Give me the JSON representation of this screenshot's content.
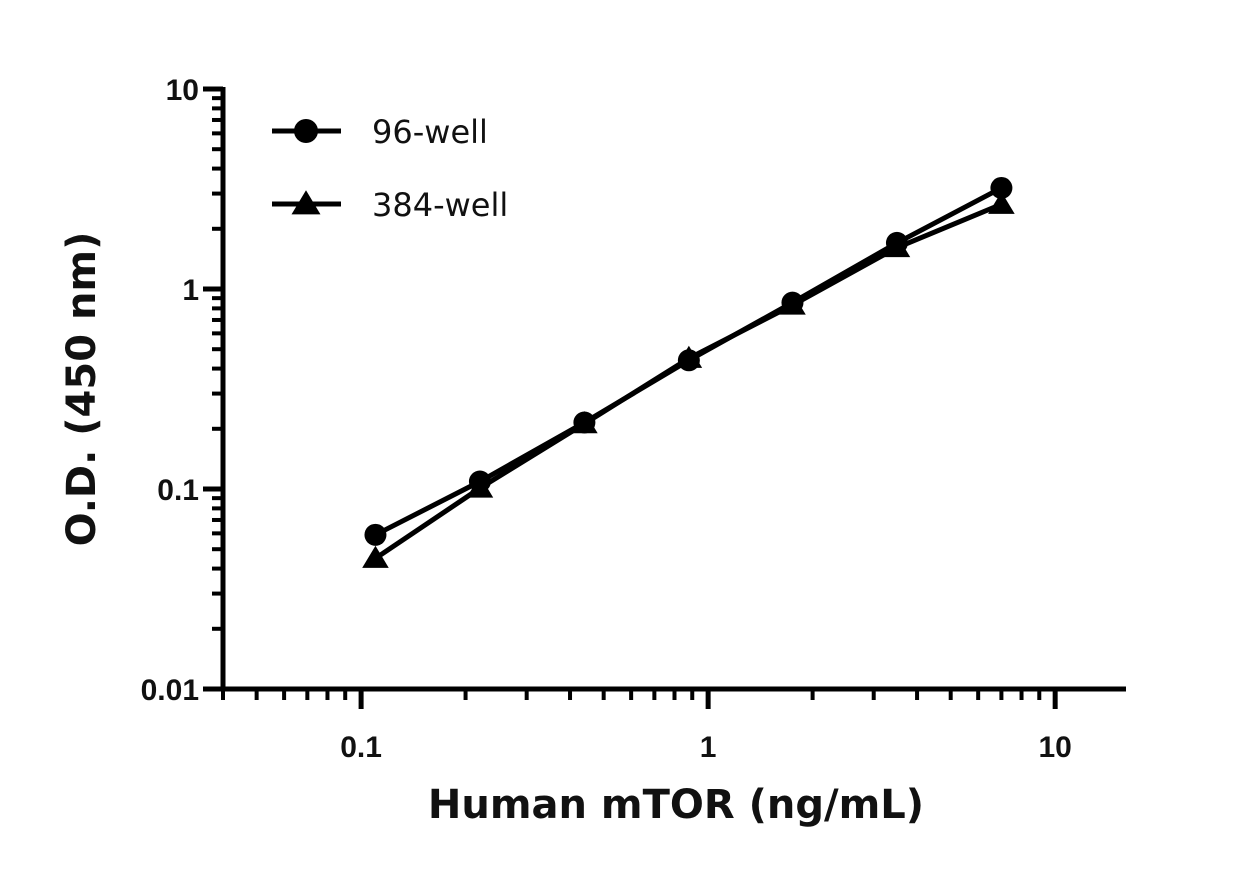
{
  "chart_data": {
    "type": "line",
    "xlabel": "Human mTOR (ng/mL)",
    "ylabel": "O.D. (450 nm)",
    "xscale": "log",
    "yscale": "log",
    "xlim": [
      0.04,
      16
    ],
    "ylim": [
      0.01,
      10
    ],
    "xticks": [
      {
        "value": 0.1,
        "label": "0.1"
      },
      {
        "value": 1,
        "label": "1"
      },
      {
        "value": 10,
        "label": "10"
      }
    ],
    "yticks": [
      {
        "value": 0.01,
        "label": "0.01"
      },
      {
        "value": 0.1,
        "label": "0.1"
      },
      {
        "value": 1,
        "label": "1"
      },
      {
        "value": 10,
        "label": "10"
      }
    ],
    "legend_position": "top-left",
    "grid": false,
    "series": [
      {
        "name": "96-well",
        "marker": "circle",
        "color": "#000000",
        "x": [
          0.11,
          0.22,
          0.44,
          0.88,
          1.75,
          3.5,
          7.0
        ],
        "y": [
          0.059,
          0.109,
          0.215,
          0.44,
          0.855,
          1.7,
          3.2
        ]
      },
      {
        "name": "384-well",
        "marker": "triangle",
        "color": "#000000",
        "x": [
          0.11,
          0.22,
          0.44,
          0.88,
          1.75,
          3.5,
          7.0
        ],
        "y": [
          0.045,
          0.101,
          0.212,
          0.45,
          0.83,
          1.61,
          2.65
        ]
      }
    ]
  }
}
